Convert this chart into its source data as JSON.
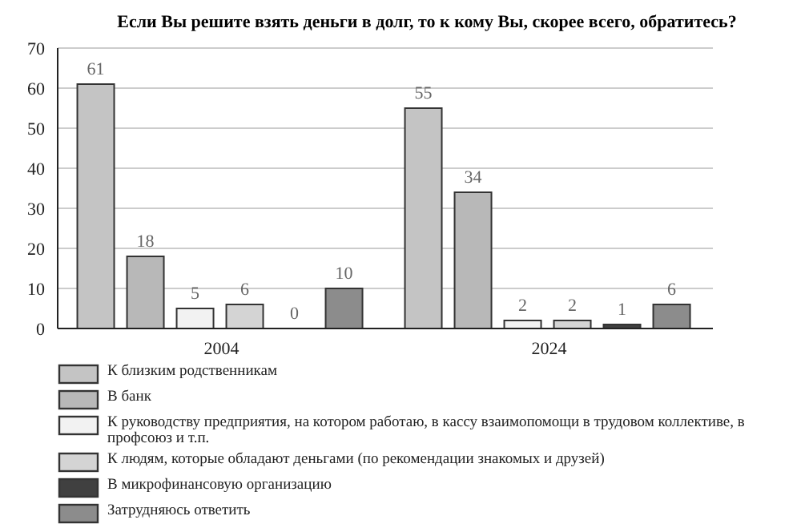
{
  "chart_data": {
    "type": "bar",
    "title": "Если Вы решите взять деньги в долг, то к кому Вы, скорее всего, обратитесь?",
    "categories": [
      "2004",
      "2024"
    ],
    "series": [
      {
        "name": "К близким родственникам",
        "color": "#c4c4c4",
        "values": [
          61,
          55
        ]
      },
      {
        "name": "В банк",
        "color": "#b8b8b8",
        "values": [
          18,
          34
        ]
      },
      {
        "name": "К руководству предприятия, на котором работаю, в кассу взаимопомощи в трудовом коллективе, в профсоюз и т.п.",
        "color": "#f2f2f2",
        "values": [
          5,
          2
        ]
      },
      {
        "name": "К людям, которые обладают деньгами (по рекомендации знакомых и друзей)",
        "color": "#d4d4d4",
        "values": [
          6,
          2
        ]
      },
      {
        "name": "В микрофинансовую организацию",
        "color": "#404040",
        "values": [
          0,
          1
        ]
      },
      {
        "name": "Затрудняюсь ответить",
        "color": "#8c8c8c",
        "values": [
          10,
          6
        ]
      }
    ],
    "ylim": [
      0,
      70
    ],
    "yticks": [
      0,
      10,
      20,
      30,
      40,
      50,
      60,
      70
    ],
    "grid": "y",
    "legend": "bottom",
    "data_labels": true
  }
}
